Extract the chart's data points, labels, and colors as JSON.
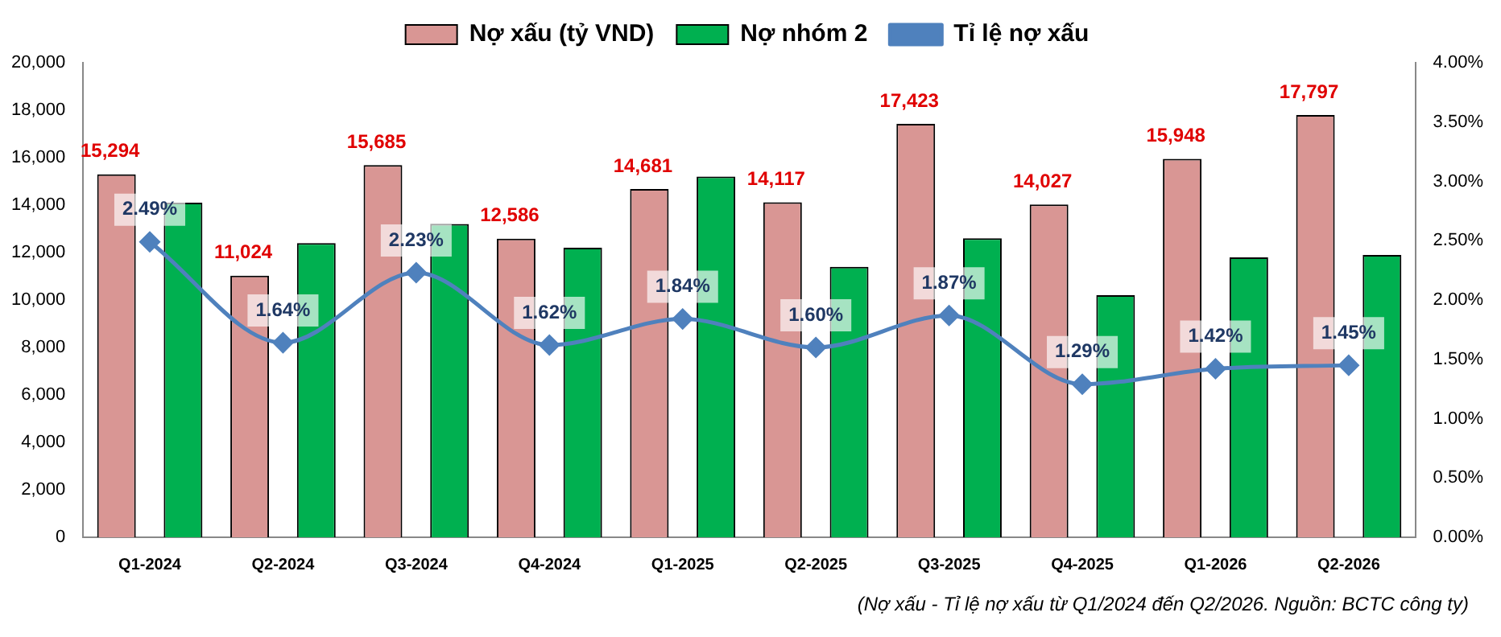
{
  "chart_data": {
    "type": "bar",
    "categories": [
      "Q1-2024",
      "Q2-2024",
      "Q3-2024",
      "Q4-2024",
      "Q1-2025",
      "Q2-2025",
      "Q3-2025",
      "Q4-2025",
      "Q1-2026",
      "Q2-2026"
    ],
    "series": [
      {
        "name": "Nợ xấu (tỷ VND)",
        "color": "#d99694",
        "values": [
          15294,
          11024,
          15685,
          12586,
          14681,
          14117,
          17423,
          14027,
          15948,
          17797
        ],
        "value_labels": [
          "15,294",
          "11,024",
          "15,685",
          "12,586",
          "14,681",
          "14,117",
          "17,423",
          "14,027",
          "15,948",
          "17,797"
        ]
      },
      {
        "name": "Nợ nhóm 2",
        "color": "#00b050",
        "values": [
          14100,
          12400,
          13200,
          12200,
          15200,
          11400,
          12600,
          10200,
          11800,
          11900
        ]
      },
      {
        "name": "Tỉ lệ nợ xấu",
        "type": "line",
        "axis": "y2",
        "color": "#4f81bd",
        "marker": "diamond",
        "values": [
          2.49,
          1.64,
          2.23,
          1.62,
          1.84,
          1.6,
          1.87,
          1.29,
          1.42,
          1.45
        ],
        "value_labels": [
          "2.49%",
          "1.64%",
          "2.23%",
          "1.62%",
          "1.84%",
          "1.60%",
          "1.87%",
          "1.29%",
          "1.42%",
          "1.45%"
        ]
      }
    ],
    "ylim": [
      0,
      20000
    ],
    "yticks": [
      {
        "value": 0,
        "label": "0"
      },
      {
        "value": 2000,
        "label": "2,000"
      },
      {
        "value": 4000,
        "label": "4,000"
      },
      {
        "value": 6000,
        "label": "6,000"
      },
      {
        "value": 8000,
        "label": "8,000"
      },
      {
        "value": 10000,
        "label": "10,000"
      },
      {
        "value": 12000,
        "label": "12,000"
      },
      {
        "value": 14000,
        "label": "14,000"
      },
      {
        "value": 16000,
        "label": "16,000"
      },
      {
        "value": 18000,
        "label": "18,000"
      },
      {
        "value": 20000,
        "label": "20,000"
      }
    ],
    "y2lim": [
      0,
      4
    ],
    "y2ticks": [
      {
        "value": 0,
        "label": "0.00%"
      },
      {
        "value": 0.5,
        "label": "0.50%"
      },
      {
        "value": 1,
        "label": "1.00%"
      },
      {
        "value": 1.5,
        "label": "1.50%"
      },
      {
        "value": 2,
        "label": "2.00%"
      },
      {
        "value": 2.5,
        "label": "2.50%"
      },
      {
        "value": 3,
        "label": "3.00%"
      },
      {
        "value": 3.5,
        "label": "3.50%"
      },
      {
        "value": 4,
        "label": "4.00%"
      }
    ],
    "grid": false,
    "legend": "top",
    "annotations": [
      "(Nợ xấu - Tỉ lệ nợ xấu từ Q1/2024 đến Q2/2026. Nguồn: BCTC công ty)"
    ]
  }
}
